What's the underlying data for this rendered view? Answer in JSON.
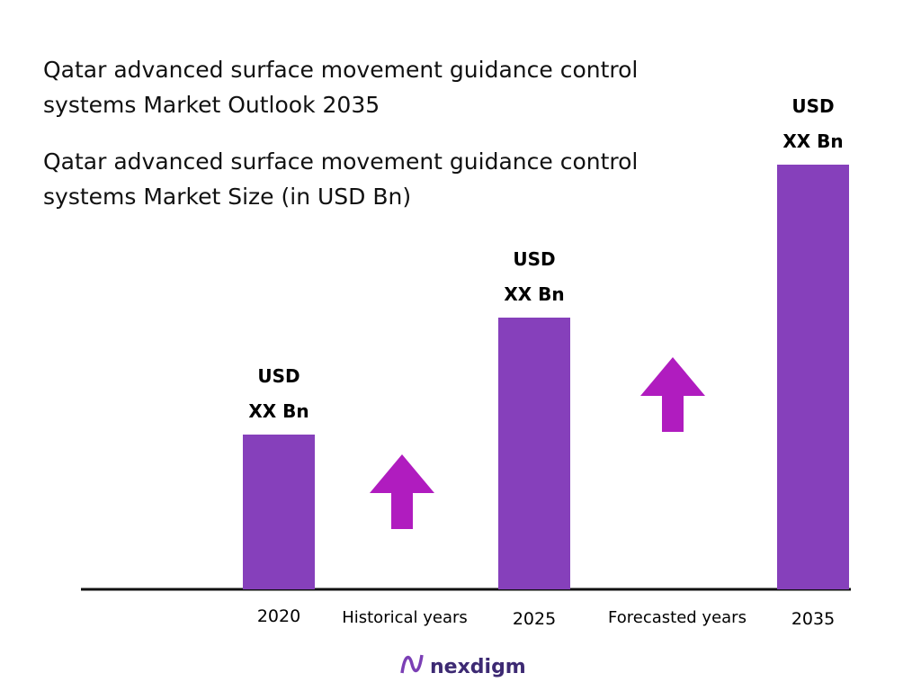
{
  "chart_data": {
    "type": "bar",
    "title": "Qatar advanced surface movement guidance control systems Market Outlook 2035",
    "subtitle": "Qatar advanced surface movement guidance control systems Market Size (in USD Bn)",
    "categories": [
      "2020",
      "2025",
      "2035"
    ],
    "values": [
      172,
      302,
      472
    ],
    "color": "#8640bb",
    "data_labels": [
      [
        "USD",
        "XX Bn"
      ],
      [
        "USD",
        "XX Bn"
      ],
      [
        "USD",
        "XX Bn"
      ]
    ],
    "annotations": [
      "Historical years",
      "Forecasted years"
    ],
    "arrow_color": "#b01cbf",
    "logo": "nexdigm"
  }
}
